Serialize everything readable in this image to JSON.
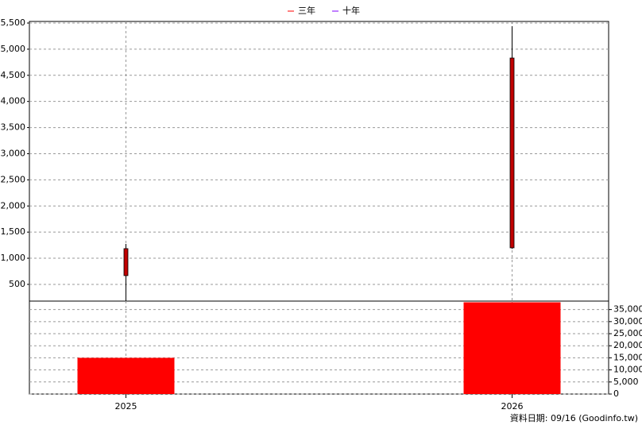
{
  "chart_data": [
    {
      "type": "candlestick",
      "categories": [
        "2025",
        "2026"
      ],
      "open": [
        667,
        1199
      ],
      "high": [
        1275,
        5439
      ],
      "low": [
        181,
        1180
      ],
      "close": [
        1184,
        4831
      ],
      "color": "#c00000",
      "legend": [
        {
          "name": "三年",
          "color": "#ff0000"
        },
        {
          "name": "十年",
          "color": "#8000ff"
        }
      ],
      "ylim": [
        180,
        5500
      ],
      "yticks": [
        500,
        {
          "value": 1000,
          "label": "1,000"
        },
        {
          "value": 1500,
          "label": "1,500"
        },
        {
          "value": 2000,
          "label": "2,000"
        },
        {
          "value": 2500,
          "label": "2,500"
        },
        {
          "value": 3000,
          "label": "3,000"
        },
        {
          "value": 3500,
          "label": "3,500"
        },
        {
          "value": 4000,
          "label": "4,000"
        },
        {
          "value": 4500,
          "label": "4,500"
        },
        {
          "value": 5000,
          "label": "5,000"
        },
        {
          "value": 5500,
          "label": "5,500"
        }
      ],
      "grid": true
    },
    {
      "type": "bar",
      "categories": [
        "2025",
        "2026"
      ],
      "values": [
        15000,
        38000
      ],
      "color": "#ff0000",
      "ylim": [
        0,
        38500
      ],
      "yticks": [
        0,
        {
          "value": 5000,
          "label": "5,000"
        },
        {
          "value": 10000,
          "label": "10,000"
        },
        {
          "value": 15000,
          "label": "15,000"
        },
        {
          "value": 20000,
          "label": "20,000"
        },
        {
          "value": 25000,
          "label": "25,000"
        },
        {
          "value": 30000,
          "label": "30,000"
        },
        {
          "value": 35000,
          "label": "35,000"
        }
      ],
      "grid": true
    }
  ],
  "footer": "資料日期: 09/16  (Goodinfo.tw)"
}
